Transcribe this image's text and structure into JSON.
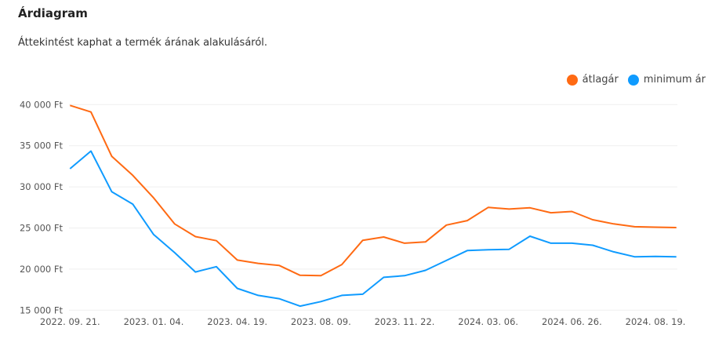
{
  "header": {
    "title": "Árdiagram",
    "subtitle": "Áttekintést kaphat a termék árának alakulásáról."
  },
  "chart_data": {
    "type": "line",
    "title": "Árdiagram",
    "xlabel": "",
    "ylabel": "",
    "ylim": [
      15000,
      40000
    ],
    "yticks": [
      15000,
      20000,
      25000,
      30000,
      35000,
      40000
    ],
    "ytick_labels": [
      "15 000 Ft",
      "20 000 Ft",
      "25 000 Ft",
      "30 000 Ft",
      "35 000 Ft",
      "40 000 Ft"
    ],
    "x_tick_labels": [
      {
        "index": 0,
        "label": "2022. 09. 21."
      },
      {
        "index": 4,
        "label": "2023. 01. 04."
      },
      {
        "index": 8,
        "label": "2023. 04. 19."
      },
      {
        "index": 12,
        "label": "2023. 08. 09."
      },
      {
        "index": 16,
        "label": "2023. 11. 22."
      },
      {
        "index": 20,
        "label": "2024. 03. 06."
      },
      {
        "index": 24,
        "label": "2024. 06. 26."
      },
      {
        "index": 28,
        "label": "2024. 08. 19."
      }
    ],
    "grid": true,
    "legend_position": "top-right",
    "series": [
      {
        "name": "átlagár",
        "color": "#ff6a13",
        "values": [
          39900,
          39100,
          33700,
          31400,
          28650,
          25500,
          23950,
          23450,
          21100,
          20700,
          20450,
          19250,
          19200,
          20550,
          23500,
          23900,
          23150,
          23300,
          25350,
          25900,
          27500,
          27300,
          27450,
          26850,
          27000,
          26000,
          25500,
          25150,
          25100,
          25050
        ]
      },
      {
        "name": "minimum ár",
        "color": "#0f9bff",
        "values": [
          32200,
          34350,
          29400,
          27900,
          24200,
          22000,
          19650,
          20300,
          17650,
          16800,
          16400,
          15500,
          16050,
          16800,
          16950,
          19000,
          19200,
          19850,
          21050,
          22250,
          22350,
          22400,
          24000,
          23150,
          23150,
          22900,
          22100,
          21500,
          21550,
          21500
        ]
      }
    ]
  }
}
